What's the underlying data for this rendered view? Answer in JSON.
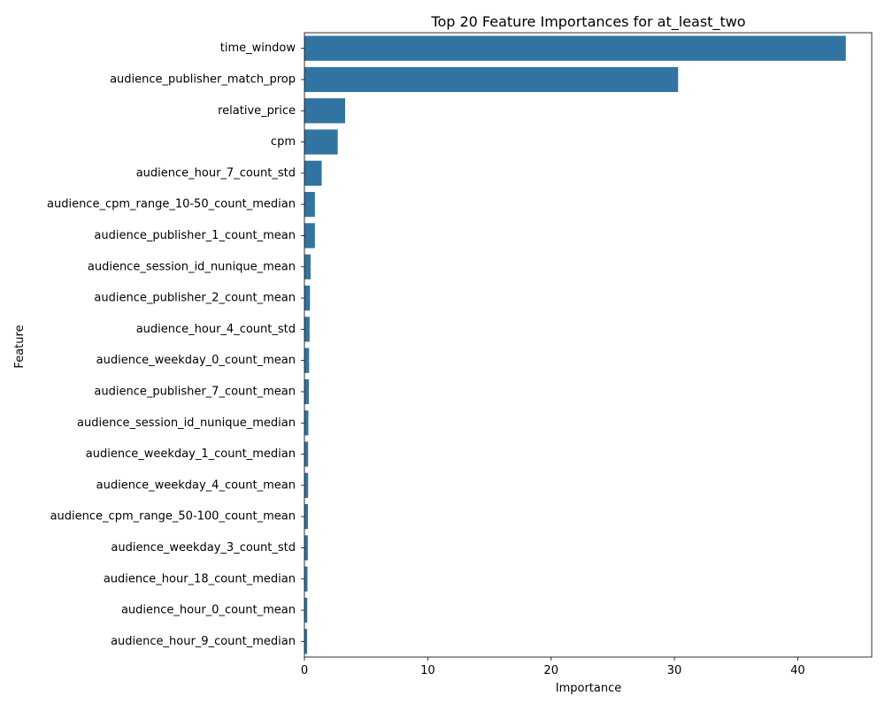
{
  "chart_data": {
    "type": "bar",
    "orientation": "horizontal",
    "title": "Top 20 Feature Importances for at_least_two",
    "xlabel": "Importance",
    "ylabel": "Feature",
    "bar_color": "#3274a1",
    "xlim": [
      0,
      46
    ],
    "xticks": [
      0,
      10,
      20,
      30,
      40
    ],
    "grid": false,
    "categories": [
      "time_window",
      "audience_publisher_match_prop",
      "relative_price",
      "cpm",
      "audience_hour_7_count_std",
      "audience_cpm_range_10-50_count_median",
      "audience_publisher_1_count_mean",
      "audience_session_id_nunique_mean",
      "audience_publisher_2_count_mean",
      "audience_hour_4_count_std",
      "audience_weekday_0_count_mean",
      "audience_publisher_7_count_mean",
      "audience_session_id_nunique_median",
      "audience_weekday_1_count_median",
      "audience_weekday_4_count_mean",
      "audience_cpm_range_50-100_count_mean",
      "audience_weekday_3_count_std",
      "audience_hour_18_count_median",
      "audience_hour_0_count_mean",
      "audience_hour_9_count_median"
    ],
    "values": [
      43.9,
      30.3,
      3.3,
      2.7,
      1.4,
      0.85,
      0.85,
      0.5,
      0.45,
      0.42,
      0.38,
      0.36,
      0.32,
      0.3,
      0.3,
      0.29,
      0.28,
      0.25,
      0.23,
      0.22
    ]
  }
}
